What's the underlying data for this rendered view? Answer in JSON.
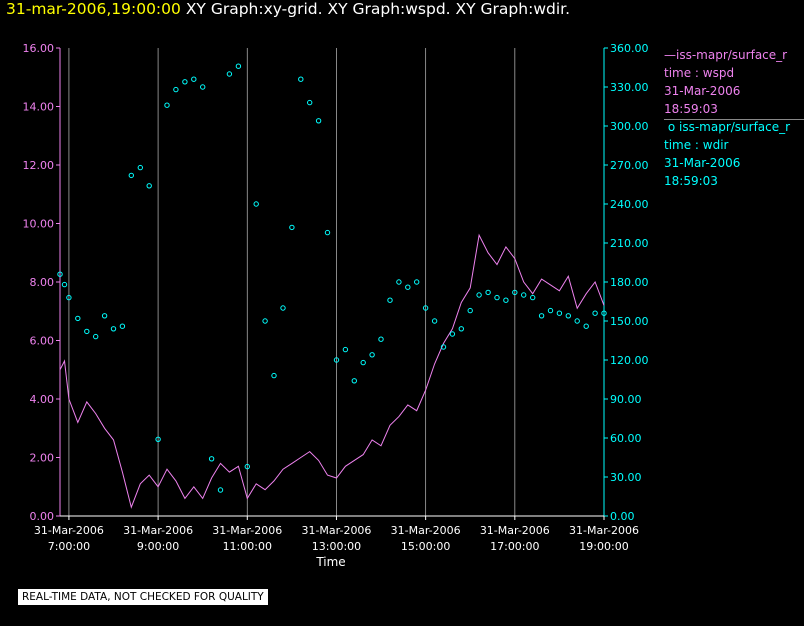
{
  "header": {
    "timestamp": "31-mar-2006,19:00:00",
    "graphs": "XY Graph:xy-grid.  XY Graph:wspd.  XY Graph:wdir."
  },
  "legend": {
    "wspd": {
      "line": "iss-mapr/surface_r",
      "var": "time : wspd",
      "date": "31-Mar-2006",
      "time": "18:59:03"
    },
    "wdir": {
      "line": "iss-mapr/surface_r",
      "var": "time : wdir",
      "date": "31-Mar-2006",
      "time": "18:59:03"
    }
  },
  "disclaimer": "REAL-TIME DATA, NOT CHECKED FOR QUALITY",
  "colors": {
    "wspd": "#ee82ee",
    "wdir": "#00ffff",
    "grid": "#aaaaaa",
    "background": "#000000"
  },
  "chart_data": {
    "type": "line",
    "xlabel": "Time",
    "x_ticks": [
      {
        "d": "31-Mar-2006",
        "t": "7:00:00",
        "h": 7
      },
      {
        "d": "31-Mar-2006",
        "t": "9:00:00",
        "h": 9
      },
      {
        "d": "31-Mar-2006",
        "t": "11:00:00",
        "h": 11
      },
      {
        "d": "31-Mar-2006",
        "t": "13:00:00",
        "h": 13
      },
      {
        "d": "31-Mar-2006",
        "t": "15:00:00",
        "h": 15
      },
      {
        "d": "31-Mar-2006",
        "t": "17:00:00",
        "h": 17
      },
      {
        "d": "31-Mar-2006",
        "t": "19:00:00",
        "h": 19
      }
    ],
    "xlim_hours": [
      6.8,
      19.0
    ],
    "y_left": {
      "ylim": [
        0,
        16
      ],
      "ticks": [
        "0.00",
        "2.00",
        "4.00",
        "6.00",
        "8.00",
        "10.00",
        "12.00",
        "14.00",
        "16.00"
      ]
    },
    "y_right": {
      "ylim": [
        0,
        360
      ],
      "ticks": [
        "0.00",
        "30.00",
        "60.00",
        "90.00",
        "120.00",
        "150.00",
        "180.00",
        "210.00",
        "240.00",
        "270.00",
        "300.00",
        "330.00",
        "360.00"
      ]
    },
    "grid": "vertical",
    "series": [
      {
        "name": "iss-mapr/surface_r time : wspd",
        "axis": "left",
        "style": "line",
        "x": [
          6.8,
          6.9,
          7.0,
          7.2,
          7.4,
          7.6,
          7.8,
          8.0,
          8.2,
          8.4,
          8.6,
          8.8,
          9.0,
          9.2,
          9.4,
          9.6,
          9.8,
          10.0,
          10.2,
          10.4,
          10.6,
          10.8,
          11.0,
          11.2,
          11.4,
          11.6,
          11.8,
          12.0,
          12.2,
          12.4,
          12.6,
          12.8,
          13.0,
          13.2,
          13.4,
          13.6,
          13.8,
          14.0,
          14.2,
          14.4,
          14.6,
          14.8,
          15.0,
          15.2,
          15.4,
          15.6,
          15.8,
          16.0,
          16.2,
          16.4,
          16.6,
          16.8,
          17.0,
          17.2,
          17.4,
          17.6,
          17.8,
          18.0,
          18.2,
          18.4,
          18.6,
          18.8,
          19.0
        ],
        "y": [
          5.0,
          5.3,
          4.0,
          3.2,
          3.9,
          3.5,
          3.0,
          2.6,
          1.5,
          0.3,
          1.1,
          1.4,
          1.0,
          1.6,
          1.2,
          0.6,
          1.0,
          0.6,
          1.3,
          1.8,
          1.5,
          1.7,
          0.6,
          1.1,
          0.9,
          1.2,
          1.6,
          1.8,
          2.0,
          2.2,
          1.9,
          1.4,
          1.3,
          1.7,
          1.9,
          2.1,
          2.6,
          2.4,
          3.1,
          3.4,
          3.8,
          3.6,
          4.3,
          5.2,
          5.9,
          6.4,
          7.3,
          7.8,
          9.6,
          9.0,
          8.6,
          9.2,
          8.8,
          8.0,
          7.6,
          8.1,
          7.9,
          7.7,
          8.2,
          7.1,
          7.6,
          8.0,
          7.2
        ]
      },
      {
        "name": "iss-mapr/surface_r time : wdir",
        "axis": "right",
        "style": "dots",
        "x": [
          6.8,
          6.9,
          7.0,
          7.2,
          7.4,
          7.6,
          7.8,
          8.0,
          8.2,
          8.4,
          8.6,
          8.8,
          9.0,
          9.2,
          9.4,
          9.6,
          9.8,
          10.0,
          10.2,
          10.4,
          10.6,
          10.8,
          11.0,
          11.2,
          11.4,
          11.6,
          11.8,
          12.0,
          12.2,
          12.4,
          12.6,
          12.8,
          13.0,
          13.2,
          13.4,
          13.6,
          13.8,
          14.0,
          14.2,
          14.4,
          14.6,
          14.8,
          15.0,
          15.2,
          15.4,
          15.6,
          15.8,
          16.0,
          16.2,
          16.4,
          16.6,
          16.8,
          17.0,
          17.2,
          17.4,
          17.6,
          17.8,
          18.0,
          18.2,
          18.4,
          18.6,
          18.8,
          19.0
        ],
        "y": [
          186,
          178,
          168,
          152,
          142,
          138,
          154,
          144,
          146,
          262,
          268,
          254,
          59,
          316,
          328,
          334,
          336,
          330,
          44,
          20,
          340,
          346,
          38,
          240,
          150,
          108,
          160,
          222,
          336,
          318,
          304,
          218,
          120,
          128,
          104,
          118,
          124,
          136,
          166,
          180,
          176,
          180,
          160,
          150,
          130,
          140,
          144,
          158,
          170,
          172,
          168,
          166,
          172,
          170,
          168,
          154,
          158,
          156,
          154,
          150,
          146,
          156,
          156
        ]
      }
    ]
  }
}
